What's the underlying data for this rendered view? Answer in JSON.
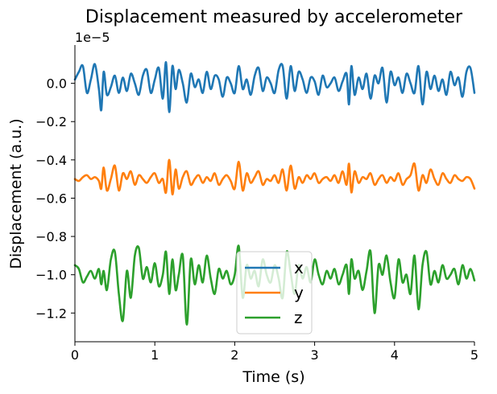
{
  "chart_data": {
    "type": "line",
    "title": "Displacement measured by accelerometer",
    "xlabel": "Time (s)",
    "ylabel": "Displacement (a.u.)",
    "offset_label": "1e−5",
    "xlim": [
      0,
      5
    ],
    "ylim": [
      -1.35e-05,
      2e-06
    ],
    "x_ticks": [
      0,
      1,
      2,
      3,
      4,
      5
    ],
    "x_tick_labels": [
      "0",
      "1",
      "2",
      "3",
      "4",
      "5"
    ],
    "y_ticks": [
      0.0,
      -2e-06,
      -4e-06,
      -6e-06,
      -8e-06,
      -1e-05,
      -1.2e-05
    ],
    "y_tick_labels": [
      "0.0",
      "−0.2",
      "−0.4",
      "−0.6",
      "−0.8",
      "−1.0",
      "−1.2"
    ],
    "grid": false,
    "legend_position": "bottom-center",
    "series": [
      {
        "name": "x",
        "color": "#1f77b4",
        "x": [
          0,
          0.05,
          0.1,
          0.15,
          0.2,
          0.25,
          0.3,
          0.33,
          0.36,
          0.4,
          0.45,
          0.5,
          0.55,
          0.6,
          0.65,
          0.7,
          0.75,
          0.8,
          0.85,
          0.9,
          0.95,
          1.0,
          1.05,
          1.1,
          1.14,
          1.18,
          1.22,
          1.26,
          1.3,
          1.35,
          1.4,
          1.45,
          1.5,
          1.55,
          1.6,
          1.65,
          1.7,
          1.75,
          1.8,
          1.85,
          1.9,
          1.95,
          2.0,
          2.05,
          2.1,
          2.15,
          2.2,
          2.25,
          2.3,
          2.35,
          2.4,
          2.45,
          2.5,
          2.55,
          2.6,
          2.65,
          2.7,
          2.75,
          2.8,
          2.85,
          2.9,
          2.95,
          3.0,
          3.05,
          3.1,
          3.15,
          3.2,
          3.25,
          3.3,
          3.35,
          3.4,
          3.43,
          3.46,
          3.5,
          3.55,
          3.6,
          3.65,
          3.7,
          3.75,
          3.8,
          3.85,
          3.9,
          3.95,
          4.0,
          4.05,
          4.1,
          4.15,
          4.2,
          4.25,
          4.3,
          4.35,
          4.4,
          4.45,
          4.5,
          4.55,
          4.6,
          4.65,
          4.7,
          4.75,
          4.8,
          4.85,
          4.9,
          4.95,
          5.0
        ],
        "y": [
          2e-07,
          6e-07,
          9e-07,
          -5e-07,
          2e-07,
          1e-06,
          -3e-07,
          -1.4e-06,
          6e-07,
          -6e-07,
          -2e-07,
          4e-07,
          -5e-07,
          3e-07,
          -4e-07,
          5e-07,
          0.0,
          -6e-07,
          4e-07,
          7e-07,
          -5e-07,
          2e-07,
          8e-07,
          -8e-07,
          1.1e-06,
          -1.5e-06,
          9e-07,
          -3e-07,
          7e-07,
          0.0,
          -1e-06,
          5e-07,
          -2e-07,
          2e-07,
          -5e-07,
          6e-07,
          -3e-07,
          4e-07,
          2e-07,
          -7e-07,
          3e-07,
          0.0,
          -5e-07,
          9e-07,
          -3e-07,
          2e-07,
          -6e-07,
          4e-07,
          8e-07,
          -4e-07,
          3e-07,
          0.0,
          -5e-07,
          7e-07,
          9e-07,
          -8e-07,
          9e-07,
          -4e-07,
          6e-07,
          2e-07,
          -5e-07,
          3e-07,
          1e-07,
          -6e-07,
          4e-07,
          -2e-07,
          0.0,
          3e-07,
          -4e-07,
          1e-07,
          5e-07,
          -1.1e-06,
          9e-07,
          -6e-07,
          3e-07,
          -3e-07,
          5e-07,
          -8e-07,
          4e-07,
          0.0,
          8e-07,
          -1e-06,
          6e-07,
          -1e-07,
          3e-07,
          -5e-07,
          5e-07,
          0.0,
          -5e-07,
          9e-07,
          -1.1e-06,
          6e-07,
          -3e-07,
          4e-07,
          -4e-07,
          2e-07,
          -6e-07,
          6e-07,
          -1e-07,
          3e-07,
          -7e-07,
          6e-07,
          8e-07,
          -5e-07
        ]
      },
      {
        "name": "y",
        "color": "#ff7f0e",
        "x": [
          0,
          0.05,
          0.1,
          0.15,
          0.2,
          0.25,
          0.3,
          0.33,
          0.36,
          0.4,
          0.45,
          0.5,
          0.55,
          0.6,
          0.65,
          0.7,
          0.75,
          0.8,
          0.85,
          0.9,
          0.95,
          1.0,
          1.05,
          1.1,
          1.14,
          1.18,
          1.22,
          1.26,
          1.3,
          1.35,
          1.4,
          1.45,
          1.5,
          1.55,
          1.6,
          1.65,
          1.7,
          1.75,
          1.8,
          1.85,
          1.9,
          1.95,
          2.0,
          2.05,
          2.1,
          2.15,
          2.2,
          2.25,
          2.3,
          2.35,
          2.4,
          2.45,
          2.5,
          2.55,
          2.6,
          2.65,
          2.7,
          2.75,
          2.8,
          2.85,
          2.9,
          2.95,
          3.0,
          3.05,
          3.1,
          3.15,
          3.2,
          3.25,
          3.3,
          3.35,
          3.4,
          3.43,
          3.46,
          3.5,
          3.55,
          3.6,
          3.65,
          3.7,
          3.75,
          3.8,
          3.85,
          3.9,
          3.95,
          4.0,
          4.05,
          4.1,
          4.15,
          4.2,
          4.25,
          4.3,
          4.35,
          4.4,
          4.45,
          4.5,
          4.55,
          4.6,
          4.65,
          4.7,
          4.75,
          4.8,
          4.85,
          4.9,
          4.95,
          5.0
        ],
        "y": [
          -5e-06,
          -5.1e-06,
          -4.9e-06,
          -4.8e-06,
          -5e-06,
          -4.9e-06,
          -5.1e-06,
          -5.5e-06,
          -4.4e-06,
          -5.6e-06,
          -5e-06,
          -4.3e-06,
          -5.6e-06,
          -4.7e-06,
          -5e-06,
          -4.6e-06,
          -5.3e-06,
          -4.8e-06,
          -5e-06,
          -5.2e-06,
          -4.9e-06,
          -4.7e-06,
          -5.2e-06,
          -5e-06,
          -5.7e-06,
          -4e-06,
          -5.8e-06,
          -4.5e-06,
          -5.5e-06,
          -4.9e-06,
          -4.6e-06,
          -5.3e-06,
          -5e-06,
          -4.8e-06,
          -5.2e-06,
          -4.9e-06,
          -5.1e-06,
          -4.7e-06,
          -5.3e-06,
          -5e-06,
          -4.8e-06,
          -5.1e-06,
          -5.5e-06,
          -4.1e-06,
          -5.6e-06,
          -4.7e-06,
          -5.2e-06,
          -4.9e-06,
          -4.6e-06,
          -5.3e-06,
          -5e-06,
          -5.1e-06,
          -4.8e-06,
          -5.2e-06,
          -4.5e-06,
          -5.6e-06,
          -4.3e-06,
          -5.5e-06,
          -4.9e-06,
          -5.2e-06,
          -4.8e-06,
          -5e-06,
          -4.7e-06,
          -5.2e-06,
          -5e-06,
          -4.9e-06,
          -5.1e-06,
          -4.8e-06,
          -5.2e-06,
          -4.6e-06,
          -5.3e-06,
          -4.2e-06,
          -5.7e-06,
          -4.6e-06,
          -5.2e-06,
          -4.9e-06,
          -5e-06,
          -4.7e-06,
          -5.3e-06,
          -5e-06,
          -4.8e-06,
          -5.2e-06,
          -4.9e-06,
          -5.1e-06,
          -4.7e-06,
          -5.3e-06,
          -5e-06,
          -4.8e-06,
          -4.2e-06,
          -5.6e-06,
          -4.8e-06,
          -5.2e-06,
          -4.5e-06,
          -5e-06,
          -5.3e-06,
          -4.7e-06,
          -5e-06,
          -5.2e-06,
          -4.8e-06,
          -5e-06,
          -5.1e-06,
          -4.9e-06,
          -5e-06,
          -5.5e-06
        ]
      },
      {
        "name": "z",
        "color": "#2ca02c",
        "x": [
          0,
          0.05,
          0.1,
          0.15,
          0.2,
          0.25,
          0.3,
          0.33,
          0.36,
          0.4,
          0.45,
          0.5,
          0.55,
          0.6,
          0.65,
          0.7,
          0.75,
          0.8,
          0.85,
          0.9,
          0.95,
          1.0,
          1.05,
          1.1,
          1.14,
          1.18,
          1.22,
          1.26,
          1.3,
          1.35,
          1.4,
          1.45,
          1.5,
          1.55,
          1.6,
          1.65,
          1.7,
          1.75,
          1.8,
          1.85,
          1.9,
          1.95,
          2.0,
          2.05,
          2.1,
          2.15,
          2.2,
          2.25,
          2.3,
          2.35,
          2.4,
          2.45,
          2.5,
          2.55,
          2.6,
          2.65,
          2.7,
          2.75,
          2.8,
          2.85,
          2.9,
          2.95,
          3.0,
          3.05,
          3.1,
          3.15,
          3.2,
          3.25,
          3.3,
          3.35,
          3.4,
          3.43,
          3.46,
          3.5,
          3.55,
          3.6,
          3.65,
          3.7,
          3.75,
          3.8,
          3.85,
          3.9,
          3.95,
          4.0,
          4.05,
          4.1,
          4.15,
          4.2,
          4.25,
          4.3,
          4.35,
          4.4,
          4.45,
          4.5,
          4.55,
          4.6,
          4.65,
          4.7,
          4.75,
          4.8,
          4.85,
          4.9,
          4.95,
          5.0
        ],
        "y": [
          -9.5e-06,
          -9.7e-06,
          -1.04e-05,
          -1.01e-05,
          -9.8e-06,
          -1.02e-05,
          -9.7e-06,
          -1.05e-05,
          -9.8e-06,
          -1.08e-05,
          -9.2e-06,
          -8.8e-06,
          -1.1e-05,
          -1.24e-05,
          -9.8e-06,
          -1.12e-05,
          -9e-06,
          -8.6e-06,
          -1.02e-05,
          -9.6e-06,
          -1.04e-05,
          -9.4e-06,
          -1.06e-05,
          -1e-05,
          -8.8e-06,
          -1.1e-05,
          -9.2e-06,
          -1.08e-05,
          -1e-05,
          -9e-06,
          -1.26e-05,
          -9.2e-06,
          -1.05e-05,
          -9.5e-06,
          -1.04e-05,
          -9e-06,
          -1.02e-05,
          -1.1e-05,
          -9.7e-06,
          -1.02e-05,
          -9.8e-06,
          -1.05e-05,
          -1e-05,
          -8.5e-06,
          -1.12e-05,
          -9.5e-06,
          -1.02e-05,
          -9.8e-06,
          -1.06e-05,
          -9.2e-06,
          -1e-05,
          -1.04e-05,
          -9.5e-06,
          -1.02e-05,
          -1.12e-05,
          -8.8e-06,
          -9.9e-06,
          -1.1e-05,
          -9.5e-06,
          -1.02e-05,
          -9.6e-06,
          -1.04e-05,
          -9.2e-06,
          -1e-05,
          -1.05e-05,
          -9.8e-06,
          -1.02e-05,
          -9.7e-06,
          -1.05e-05,
          -1e-05,
          -9.5e-06,
          -1.1e-05,
          -9.2e-06,
          -1.02e-05,
          -9.8e-06,
          -1.08e-05,
          -9.8e-06,
          -8.8e-06,
          -1.2e-05,
          -9.5e-06,
          -1e-05,
          -9e-06,
          -1.04e-05,
          -1.12e-05,
          -9.2e-06,
          -1.04e-05,
          -1e-05,
          -1.1e-05,
          -9e-06,
          -1.18e-05,
          -9.5e-06,
          -8.8e-06,
          -1.05e-05,
          -9.8e-06,
          -1.04e-05,
          -9.5e-06,
          -1.02e-05,
          -1e-05,
          -9.7e-06,
          -1.05e-05,
          -9.5e-06,
          -1.02e-05,
          -9.7e-06,
          -1.03e-05
        ]
      }
    ]
  }
}
